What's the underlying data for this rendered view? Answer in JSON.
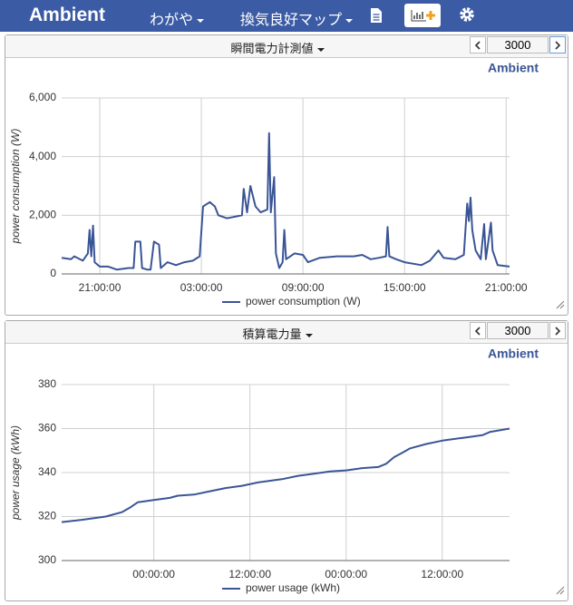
{
  "navbar": {
    "brand": "Ambient",
    "menus": [
      "わがや",
      "換気良好マップ"
    ]
  },
  "panels": [
    {
      "title": "瞬間電力計測値",
      "count": 3000
    },
    {
      "title": "積算電力量",
      "count": 3000
    }
  ],
  "chart_data": [
    {
      "type": "line",
      "credit": "Ambient",
      "y_label": "power consumption (W)",
      "grid": true,
      "xlim": [
        18.75,
        45.2
      ],
      "xticks": [
        {
          "value": 21,
          "label": "21:00:00"
        },
        {
          "value": 27,
          "label": "03:00:00"
        },
        {
          "value": 33,
          "label": "09:00:00"
        },
        {
          "value": 39,
          "label": "15:00:00"
        },
        {
          "value": 45,
          "label": "21:00:00"
        }
      ],
      "ylim": [
        0,
        6000
      ],
      "yticks": [
        0,
        {
          "value": 2000,
          "label": "2,000"
        },
        {
          "value": 4000,
          "label": "4,000"
        },
        {
          "value": 6000,
          "label": "6,000"
        }
      ],
      "x": [
        18.75,
        19.3,
        19.5,
        20.0,
        20.3,
        20.4,
        20.5,
        20.6,
        20.7,
        21.0,
        21.5,
        22.0,
        22.7,
        23.0,
        23.1,
        23.4,
        23.5,
        23.8,
        24.0,
        24.2,
        24.5,
        24.6,
        25.0,
        25.5,
        26.0,
        26.5,
        26.9,
        27.1,
        27.5,
        27.8,
        28.0,
        28.5,
        29.0,
        29.4,
        29.5,
        29.7,
        29.9,
        30.2,
        30.5,
        30.9,
        31.0,
        31.1,
        31.3,
        31.4,
        31.6,
        31.8,
        31.9,
        32.0,
        32.5,
        33.0,
        33.3,
        34.0,
        35.0,
        36.0,
        36.5,
        37.0,
        37.5,
        37.9,
        38.0,
        38.1,
        38.5,
        39.0,
        40.0,
        40.5,
        41.0,
        41.3,
        42.0,
        42.5,
        42.7,
        42.8,
        42.9,
        43.0,
        43.2,
        43.5,
        43.7,
        43.8,
        44.1,
        44.2,
        44.5,
        45.2
      ],
      "series": [
        {
          "name": "power consumption (W)",
          "color": "#3a5596",
          "values": [
            550,
            500,
            600,
            450,
            700,
            1500,
            600,
            1650,
            400,
            250,
            250,
            150,
            200,
            200,
            1100,
            1100,
            200,
            150,
            150,
            1100,
            1000,
            200,
            400,
            300,
            400,
            450,
            600,
            2300,
            2450,
            2300,
            2000,
            1900,
            1950,
            2000,
            2900,
            2100,
            3000,
            2300,
            2100,
            2200,
            4800,
            2100,
            3300,
            700,
            200,
            400,
            1500,
            500,
            700,
            650,
            400,
            550,
            600,
            600,
            650,
            500,
            550,
            600,
            1600,
            600,
            500,
            400,
            300,
            450,
            800,
            550,
            500,
            650,
            2400,
            1800,
            2600,
            1500,
            800,
            500,
            1700,
            500,
            1750,
            800,
            300,
            250
          ]
        }
      ]
    },
    {
      "type": "line",
      "credit": "Ambient",
      "y_label": "power usage (kWh)",
      "grid": true,
      "xlim": [
        12.5,
        68.4
      ],
      "xticks": [
        {
          "value": 24,
          "label": "00:00:00"
        },
        {
          "value": 36,
          "label": "12:00:00"
        },
        {
          "value": 48,
          "label": "00:00:00"
        },
        {
          "value": 60,
          "label": "12:00:00"
        }
      ],
      "ylim": [
        300,
        380
      ],
      "yticks": [
        300,
        320,
        340,
        360,
        380
      ],
      "x": [
        12.5,
        15,
        18,
        19,
        20,
        21,
        22,
        24,
        26,
        27,
        29,
        31,
        33,
        35,
        37,
        40,
        42,
        44,
        46,
        48,
        50,
        52,
        53,
        54,
        55,
        56,
        58,
        60,
        63,
        65,
        66,
        68.4
      ],
      "series": [
        {
          "name": "power usage (kWh)",
          "color": "#3a5596",
          "values": [
            317.5,
            318.5,
            320,
            321,
            322,
            324,
            326.5,
            327.5,
            328.5,
            329.5,
            330,
            331.5,
            333,
            334,
            335.5,
            337,
            338.5,
            339.5,
            340.5,
            341,
            342,
            342.5,
            344,
            347,
            349,
            351,
            353,
            354.5,
            356,
            357,
            358.5,
            360
          ]
        }
      ]
    }
  ]
}
